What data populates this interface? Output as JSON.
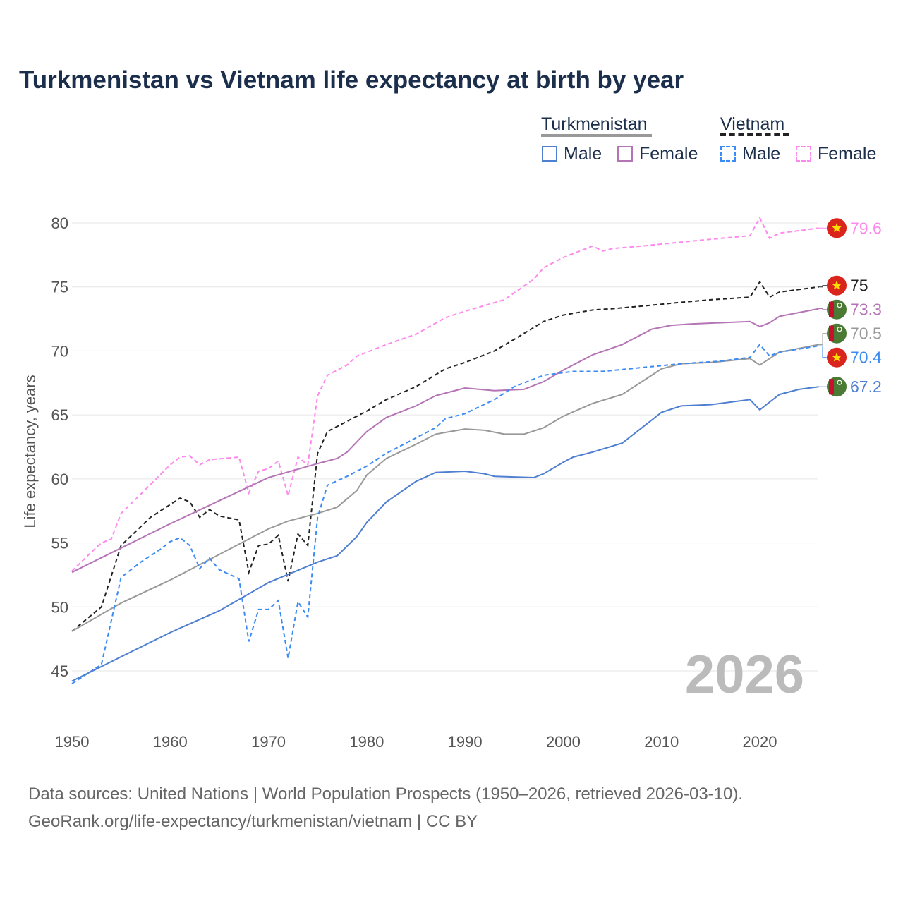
{
  "title": "Turkmenistan vs Vietnam life expectancy at birth by year",
  "legend": {
    "country1": "Turkmenistan",
    "country2": "Vietnam",
    "male": "Male",
    "female": "Female"
  },
  "year_display": "2026",
  "source_line1": "Data sources: United Nations | World Population Prospects (1950–2026, retrieved 2026-03-10).",
  "source_line2": "GeoRank.org/life-expectancy/turkmenistan/vietnam | CC BY",
  "chart_data": {
    "type": "line",
    "title": "Turkmenistan vs Vietnam life expectancy at birth by year",
    "xlabel": "",
    "ylabel": "Life expectancy, years",
    "xlim": [
      1950,
      2026
    ],
    "ylim": [
      42,
      82
    ],
    "xticks": [
      1950,
      1960,
      1970,
      1980,
      1990,
      2000,
      2010,
      2020
    ],
    "yticks": [
      45,
      50,
      55,
      60,
      65,
      70,
      75,
      80
    ],
    "grid": true,
    "legend_position": "top-right",
    "series": [
      {
        "name": "Vietnam Female",
        "country": "Vietnam",
        "color": "#ff88ee",
        "dashed": true,
        "end_label": "79.6",
        "points": [
          [
            1950,
            52.8
          ],
          [
            1952,
            54.3
          ],
          [
            1953,
            55
          ],
          [
            1954,
            55.3
          ],
          [
            1955,
            57.3
          ],
          [
            1957,
            58.8
          ],
          [
            1960,
            61.1
          ],
          [
            1961,
            61.7
          ],
          [
            1962,
            61.8
          ],
          [
            1963,
            61.1
          ],
          [
            1964,
            61.5
          ],
          [
            1967,
            61.7
          ],
          [
            1968,
            58.9
          ],
          [
            1969,
            60.6
          ],
          [
            1970,
            60.8
          ],
          [
            1971,
            61.4
          ],
          [
            1972,
            58.7
          ],
          [
            1973,
            61.7
          ],
          [
            1974,
            61.1
          ],
          [
            1975,
            66.5
          ],
          [
            1976,
            68.1
          ],
          [
            1978,
            68.9
          ],
          [
            1979,
            69.6
          ],
          [
            1982,
            70.5
          ],
          [
            1985,
            71.3
          ],
          [
            1988,
            72.6
          ],
          [
            1990,
            73.1
          ],
          [
            1994,
            74
          ],
          [
            1997,
            75.6
          ],
          [
            1998,
            76.5
          ],
          [
            2000,
            77.3
          ],
          [
            2003,
            78.2
          ],
          [
            2004,
            77.8
          ],
          [
            2005,
            78
          ],
          [
            2008,
            78.2
          ],
          [
            2012,
            78.5
          ],
          [
            2016,
            78.8
          ],
          [
            2019,
            79
          ],
          [
            2020,
            80.4
          ],
          [
            2021,
            78.8
          ],
          [
            2022,
            79.2
          ],
          [
            2026,
            79.6
          ]
        ]
      },
      {
        "name": "Vietnam",
        "country": "Vietnam",
        "color": "#222222",
        "dashed": true,
        "end_label": "75",
        "points": [
          [
            1950,
            48.1
          ],
          [
            1953,
            50
          ],
          [
            1955,
            54.8
          ],
          [
            1958,
            57
          ],
          [
            1961,
            58.5
          ],
          [
            1962,
            58.2
          ],
          [
            1963,
            57
          ],
          [
            1964,
            57.6
          ],
          [
            1965,
            57.1
          ],
          [
            1967,
            56.8
          ],
          [
            1968,
            52.7
          ],
          [
            1969,
            54.8
          ],
          [
            1970,
            54.9
          ],
          [
            1971,
            55.6
          ],
          [
            1972,
            52
          ],
          [
            1973,
            55.7
          ],
          [
            1974,
            54.8
          ],
          [
            1975,
            62
          ],
          [
            1976,
            63.7
          ],
          [
            1978,
            64.5
          ],
          [
            1980,
            65.3
          ],
          [
            1982,
            66.2
          ],
          [
            1985,
            67.2
          ],
          [
            1988,
            68.6
          ],
          [
            1990,
            69.1
          ],
          [
            1993,
            70
          ],
          [
            1995,
            70.9
          ],
          [
            1998,
            72.3
          ],
          [
            2000,
            72.8
          ],
          [
            2003,
            73.2
          ],
          [
            2005,
            73.3
          ],
          [
            2008,
            73.5
          ],
          [
            2012,
            73.8
          ],
          [
            2015,
            74
          ],
          [
            2019,
            74.2
          ],
          [
            2020,
            75.4
          ],
          [
            2021,
            74.2
          ],
          [
            2022,
            74.6
          ],
          [
            2024,
            74.8
          ],
          [
            2026,
            75
          ]
        ]
      },
      {
        "name": "Turkmenistan Female",
        "country": "Turkmenistan",
        "color": "#b574b5",
        "dashed": false,
        "end_label": "73.3",
        "points": [
          [
            1950,
            52.7
          ],
          [
            1955,
            54.6
          ],
          [
            1960,
            56.5
          ],
          [
            1965,
            58.3
          ],
          [
            1970,
            60.1
          ],
          [
            1975,
            61.2
          ],
          [
            1977,
            61.6
          ],
          [
            1978,
            62.1
          ],
          [
            1980,
            63.7
          ],
          [
            1982,
            64.8
          ],
          [
            1985,
            65.7
          ],
          [
            1987,
            66.5
          ],
          [
            1990,
            67.1
          ],
          [
            1993,
            66.9
          ],
          [
            1996,
            67
          ],
          [
            1998,
            67.6
          ],
          [
            2000,
            68.5
          ],
          [
            2003,
            69.7
          ],
          [
            2006,
            70.5
          ],
          [
            2009,
            71.7
          ],
          [
            2011,
            72
          ],
          [
            2013,
            72.1
          ],
          [
            2016,
            72.2
          ],
          [
            2019,
            72.3
          ],
          [
            2020,
            71.9
          ],
          [
            2021,
            72.2
          ],
          [
            2022,
            72.7
          ],
          [
            2024,
            73
          ],
          [
            2026,
            73.3
          ]
        ]
      },
      {
        "name": "Turkmenistan",
        "country": "Turkmenistan",
        "color": "#999999",
        "dashed": false,
        "end_label": "70.5",
        "points": [
          [
            1950,
            48.1
          ],
          [
            1955,
            50.3
          ],
          [
            1960,
            52.1
          ],
          [
            1965,
            54.1
          ],
          [
            1968,
            55.3
          ],
          [
            1970,
            56.1
          ],
          [
            1972,
            56.7
          ],
          [
            1975,
            57.3
          ],
          [
            1977,
            57.8
          ],
          [
            1979,
            59.1
          ],
          [
            1980,
            60.3
          ],
          [
            1982,
            61.6
          ],
          [
            1985,
            62.7
          ],
          [
            1987,
            63.5
          ],
          [
            1990,
            63.9
          ],
          [
            1992,
            63.8
          ],
          [
            1994,
            63.5
          ],
          [
            1996,
            63.5
          ],
          [
            1998,
            64
          ],
          [
            2000,
            64.9
          ],
          [
            2003,
            65.9
          ],
          [
            2006,
            66.6
          ],
          [
            2008,
            67.6
          ],
          [
            2010,
            68.6
          ],
          [
            2012,
            69
          ],
          [
            2015,
            69.1
          ],
          [
            2019,
            69.4
          ],
          [
            2020,
            68.9
          ],
          [
            2021,
            69.4
          ],
          [
            2022,
            69.9
          ],
          [
            2024,
            70.2
          ],
          [
            2026,
            70.5
          ]
        ]
      },
      {
        "name": "Vietnam Male",
        "country": "Vietnam",
        "color": "#3b8bf5",
        "dashed": true,
        "end_label": "70.4",
        "points": [
          [
            1950,
            44
          ],
          [
            1953,
            45.5
          ],
          [
            1955,
            52.3
          ],
          [
            1957,
            53.5
          ],
          [
            1959,
            54.5
          ],
          [
            1960,
            55.1
          ],
          [
            1961,
            55.4
          ],
          [
            1962,
            54.8
          ],
          [
            1963,
            53
          ],
          [
            1964,
            53.8
          ],
          [
            1965,
            52.9
          ],
          [
            1967,
            52.2
          ],
          [
            1968,
            47.3
          ],
          [
            1969,
            49.8
          ],
          [
            1970,
            49.8
          ],
          [
            1971,
            50.5
          ],
          [
            1972,
            46
          ],
          [
            1973,
            50.4
          ],
          [
            1974,
            49.2
          ],
          [
            1975,
            57
          ],
          [
            1976,
            59.5
          ],
          [
            1978,
            60.2
          ],
          [
            1980,
            61
          ],
          [
            1982,
            62
          ],
          [
            1985,
            63.2
          ],
          [
            1987,
            64
          ],
          [
            1988,
            64.7
          ],
          [
            1990,
            65.1
          ],
          [
            1993,
            66.2
          ],
          [
            1995,
            67.2
          ],
          [
            1998,
            68.1
          ],
          [
            2001,
            68.4
          ],
          [
            2004,
            68.4
          ],
          [
            2008,
            68.7
          ],
          [
            2012,
            69
          ],
          [
            2016,
            69.2
          ],
          [
            2019,
            69.5
          ],
          [
            2020,
            70.5
          ],
          [
            2021,
            69.6
          ],
          [
            2022,
            69.9
          ],
          [
            2026,
            70.4
          ]
        ]
      },
      {
        "name": "Turkmenistan Male",
        "country": "Turkmenistan",
        "color": "#4f7fd0",
        "dashed": false,
        "end_label": "67.2",
        "points": [
          [
            1950,
            44.2
          ],
          [
            1955,
            46.1
          ],
          [
            1960,
            48
          ],
          [
            1965,
            49.7
          ],
          [
            1970,
            51.9
          ],
          [
            1975,
            53.5
          ],
          [
            1977,
            54
          ],
          [
            1979,
            55.5
          ],
          [
            1980,
            56.6
          ],
          [
            1982,
            58.2
          ],
          [
            1985,
            59.8
          ],
          [
            1987,
            60.5
          ],
          [
            1990,
            60.6
          ],
          [
            1992,
            60.4
          ],
          [
            1993,
            60.2
          ],
          [
            1997,
            60.1
          ],
          [
            1998,
            60.4
          ],
          [
            2000,
            61.3
          ],
          [
            2001,
            61.7
          ],
          [
            2003,
            62.1
          ],
          [
            2006,
            62.8
          ],
          [
            2008,
            64
          ],
          [
            2010,
            65.2
          ],
          [
            2012,
            65.7
          ],
          [
            2015,
            65.8
          ],
          [
            2019,
            66.2
          ],
          [
            2020,
            65.4
          ],
          [
            2021,
            66
          ],
          [
            2022,
            66.6
          ],
          [
            2024,
            67
          ],
          [
            2026,
            67.2
          ]
        ]
      }
    ]
  }
}
